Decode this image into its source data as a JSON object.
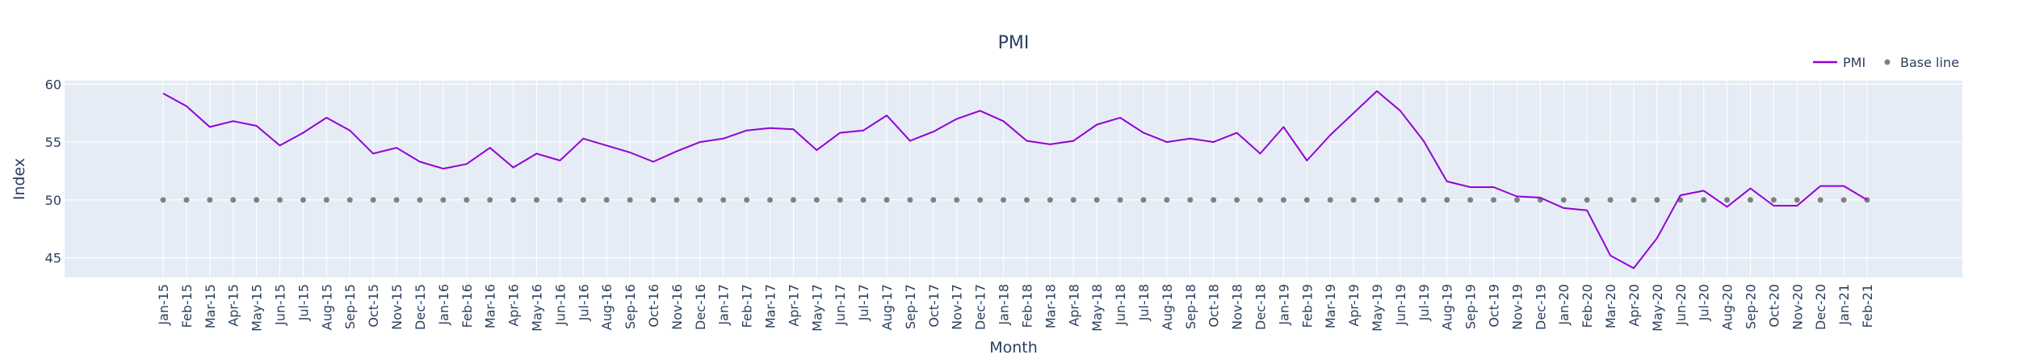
{
  "chart_data": {
    "type": "line",
    "title": "PMI",
    "xlabel": "Month",
    "ylabel": "Index",
    "ylim": [
      43.3,
      60.3
    ],
    "yticks": [
      45,
      50,
      55,
      60
    ],
    "grid": true,
    "legend_position": "top-right",
    "colors": {
      "pmi": "#9400d3",
      "base": "#808080",
      "plot_bg": "#e5ecf6",
      "grid": "#ffffff"
    },
    "categories": [
      "Jan-15",
      "Feb-15",
      "Mar-15",
      "Apr-15",
      "May-15",
      "Jun-15",
      "Jul-15",
      "Aug-15",
      "Sep-15",
      "Oct-15",
      "Nov-15",
      "Dec-15",
      "Jan-16",
      "Feb-16",
      "Mar-16",
      "Apr-16",
      "May-16",
      "Jun-16",
      "Jul-16",
      "Aug-16",
      "Sep-16",
      "Oct-16",
      "Nov-16",
      "Dec-16",
      "Jan-17",
      "Feb-17",
      "Mar-17",
      "Apr-17",
      "May-17",
      "Jun-17",
      "Jul-17",
      "Aug-17",
      "Sep-17",
      "Oct-17",
      "Nov-17",
      "Dec-17",
      "Jan-18",
      "Feb-18",
      "Mar-18",
      "Apr-18",
      "May-18",
      "Jun-18",
      "Jul-18",
      "Aug-18",
      "Sep-18",
      "Oct-18",
      "Nov-18",
      "Dec-18",
      "Jan-19",
      "Feb-19",
      "Mar-19",
      "Apr-19",
      "May-19",
      "Jun-19",
      "Jul-19",
      "Aug-19",
      "Sep-19",
      "Oct-19",
      "Nov-19",
      "Dec-19",
      "Jan-20",
      "Feb-20",
      "Mar-20",
      "Apr-20",
      "May-20",
      "Jun-20",
      "Jul-20",
      "Aug-20",
      "Sep-20",
      "Oct-20",
      "Nov-20",
      "Dec-20",
      "Jan-21",
      "Feb-21"
    ],
    "series": [
      {
        "name": "PMI",
        "mode": "lines",
        "values": [
          59.2,
          58.1,
          56.3,
          56.8,
          56.4,
          54.7,
          55.8,
          57.1,
          56.0,
          54.0,
          54.5,
          53.3,
          52.7,
          53.1,
          54.5,
          52.8,
          54.0,
          53.4,
          55.3,
          54.7,
          54.1,
          53.3,
          54.2,
          55.0,
          55.3,
          56.0,
          56.2,
          56.1,
          54.3,
          55.8,
          56.0,
          57.3,
          55.1,
          55.9,
          57.0,
          57.7,
          56.8,
          55.1,
          54.8,
          55.1,
          56.5,
          57.1,
          55.8,
          55.0,
          55.3,
          55.0,
          55.8,
          54.0,
          56.3,
          53.4,
          55.6,
          57.5,
          59.4,
          57.7,
          55.1,
          51.6,
          51.1,
          51.1,
          50.3,
          50.2,
          49.3,
          49.1,
          45.2,
          44.1,
          46.7,
          50.4,
          50.8,
          49.4,
          51.0,
          49.5,
          49.5,
          51.2,
          51.2,
          50.0
        ]
      },
      {
        "name": "Base line",
        "mode": "markers",
        "values": [
          50,
          50,
          50,
          50,
          50,
          50,
          50,
          50,
          50,
          50,
          50,
          50,
          50,
          50,
          50,
          50,
          50,
          50,
          50,
          50,
          50,
          50,
          50,
          50,
          50,
          50,
          50,
          50,
          50,
          50,
          50,
          50,
          50,
          50,
          50,
          50,
          50,
          50,
          50,
          50,
          50,
          50,
          50,
          50,
          50,
          50,
          50,
          50,
          50,
          50,
          50,
          50,
          50,
          50,
          50,
          50,
          50,
          50,
          50,
          50,
          50,
          50,
          50,
          50,
          50,
          50,
          50,
          50,
          50,
          50,
          50,
          50,
          50,
          50
        ]
      }
    ]
  }
}
